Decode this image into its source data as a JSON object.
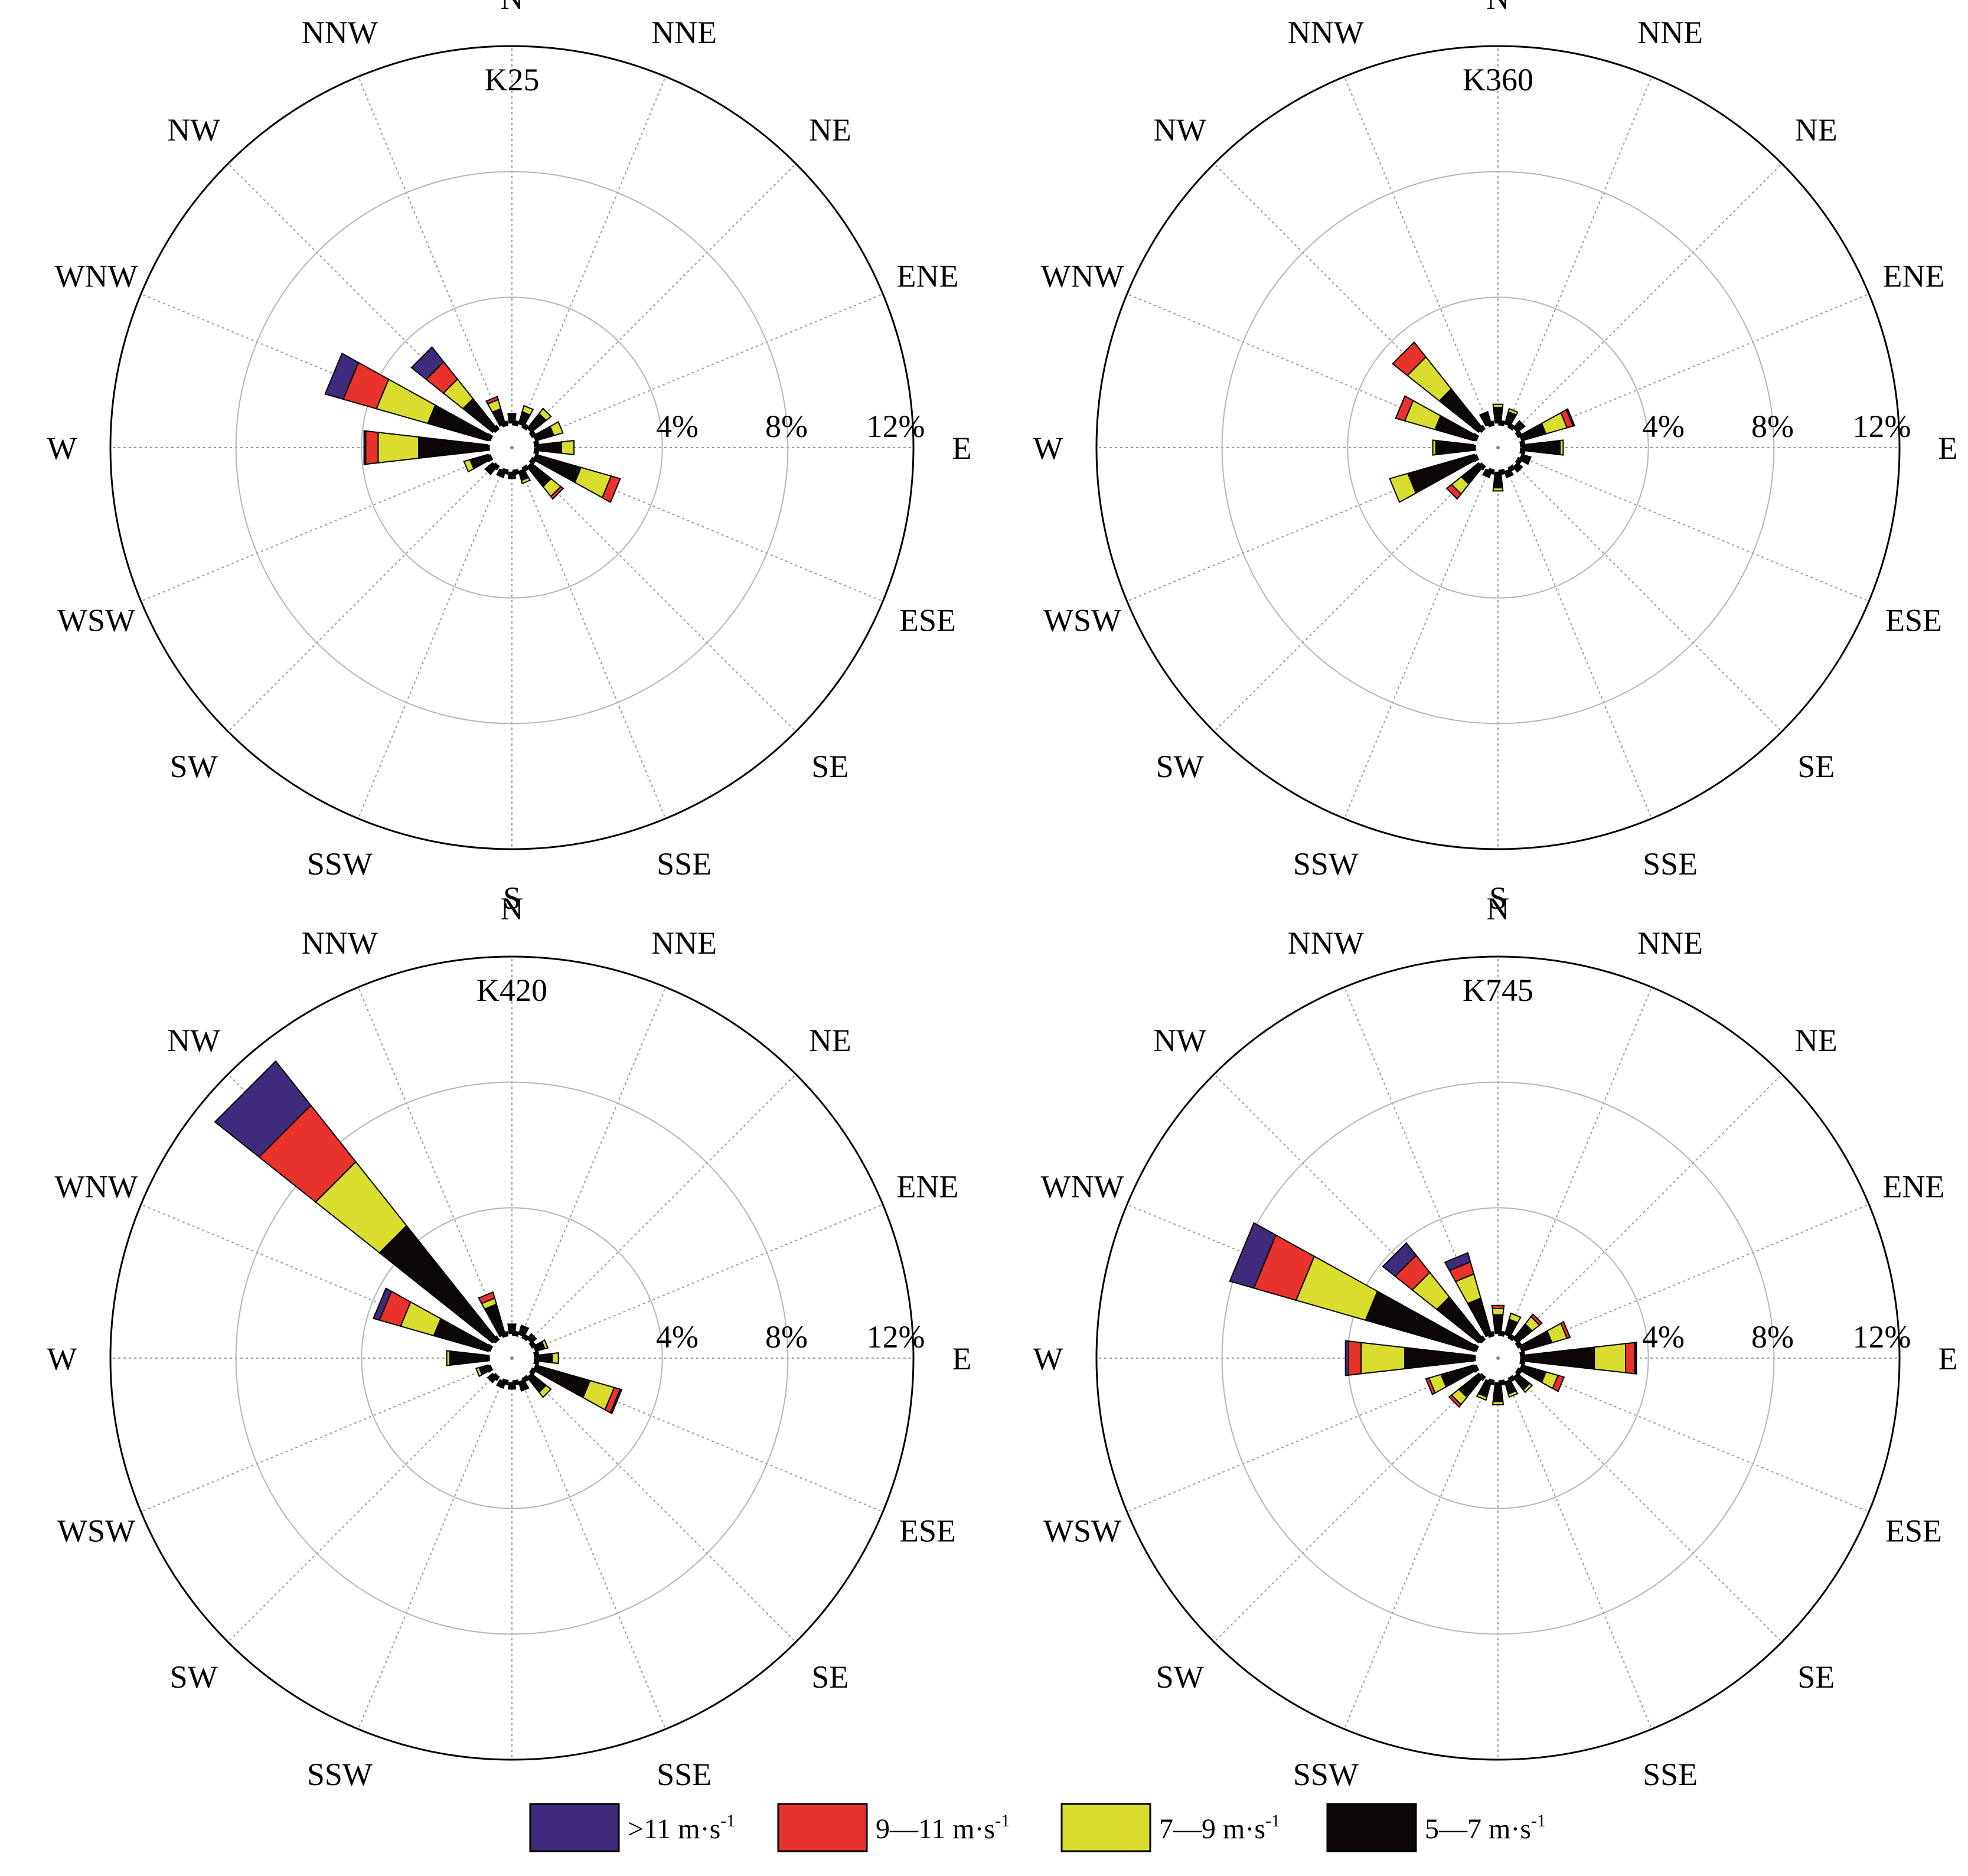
{
  "directions": [
    "N",
    "NNE",
    "NE",
    "ENE",
    "E",
    "ESE",
    "SE",
    "SSE",
    "S",
    "SSW",
    "SW",
    "WSW",
    "W",
    "WNW",
    "NW",
    "NNW"
  ],
  "ring_labels": [
    "4%",
    "8%",
    "12%"
  ],
  "colors": {
    ">11": "#3f2a7b",
    "9-11": "#e8322c",
    "7-9": "#d8dd2e",
    "5-7": "#0b0707"
  },
  "legend": [
    {
      "key": "5-7",
      "label": "5—7 m·s",
      "sup": "-1"
    },
    {
      "key": "7-9",
      "label": "7—9 m·s",
      "sup": "-1"
    },
    {
      "key": "9-11",
      "label": "9—11 m·s",
      "sup": "-1"
    },
    {
      "key": ">11",
      "label": ">11 m·s",
      "sup": "-1"
    }
  ],
  "chart_data": [
    {
      "type": "windrose",
      "title": "K25",
      "rmax": 12,
      "bins": [
        "5-7",
        "7-9",
        "9-11",
        ">11"
      ],
      "frequencies": {
        "N": [
          0.3,
          0.0,
          0.0,
          0.0
        ],
        "NNE": [
          0.4,
          0.2,
          0.0,
          0.0
        ],
        "NE": [
          0.6,
          0.2,
          0.0,
          0.0
        ],
        "ENE": [
          0.6,
          0.3,
          0.0,
          0.0
        ],
        "E": [
          0.8,
          0.4,
          0.0,
          0.0
        ],
        "ESE": [
          1.5,
          1.0,
          0.3,
          0.0
        ],
        "SE": [
          0.8,
          0.4,
          0.1,
          0.0
        ],
        "SSE": [
          0.3,
          0.1,
          0.0,
          0.0
        ],
        "S": [
          0.2,
          0.0,
          0.0,
          0.0
        ],
        "SSW": [
          0.2,
          0.0,
          0.0,
          0.0
        ],
        "SW": [
          0.3,
          0.0,
          0.0,
          0.0
        ],
        "WSW": [
          0.6,
          0.2,
          0.0,
          0.0
        ],
        "W": [
          2.2,
          1.3,
          0.4,
          0.05
        ],
        "WNW": [
          2.0,
          1.7,
          1.1,
          0.6
        ],
        "NW": [
          1.2,
          0.8,
          0.7,
          0.6
        ],
        "NNW": [
          0.5,
          0.3,
          0.1,
          0.0
        ]
      }
    },
    {
      "type": "windrose",
      "title": "K360",
      "rmax": 12,
      "bins": [
        "5-7",
        "7-9",
        "9-11",
        ">11"
      ],
      "frequencies": {
        "N": [
          0.5,
          0.1,
          0.0,
          0.0
        ],
        "NNE": [
          0.4,
          0.1,
          0.0,
          0.0
        ],
        "NE": [
          0.3,
          0.0,
          0.0,
          0.0
        ],
        "ENE": [
          0.8,
          0.7,
          0.2,
          0.05
        ],
        "E": [
          1.2,
          0.1,
          0.0,
          0.0
        ],
        "ESE": [
          0.3,
          0.0,
          0.0,
          0.0
        ],
        "SE": [
          0.2,
          0.0,
          0.0,
          0.0
        ],
        "SSE": [
          0.2,
          0.0,
          0.0,
          0.0
        ],
        "S": [
          0.5,
          0.1,
          0.0,
          0.0
        ],
        "SSW": [
          0.2,
          0.0,
          0.0,
          0.0
        ],
        "SW": [
          0.7,
          0.4,
          0.2,
          0.0
        ],
        "WSW": [
          2.2,
          0.6,
          0.0,
          0.0
        ],
        "W": [
          1.2,
          0.1,
          0.0,
          0.0
        ],
        "WNW": [
          1.3,
          1.0,
          0.3,
          0.0
        ],
        "NW": [
          1.6,
          1.3,
          0.6,
          0.0
        ],
        "NNW": [
          0.4,
          0.0,
          0.0,
          0.0
        ]
      }
    },
    {
      "type": "windrose",
      "title": "K420",
      "rmax": 12,
      "bins": [
        "5-7",
        "7-9",
        "9-11",
        ">11"
      ],
      "frequencies": {
        "N": [
          0.3,
          0.0,
          0.0,
          0.0
        ],
        "NNE": [
          0.3,
          0.0,
          0.0,
          0.0
        ],
        "NE": [
          0.2,
          0.0,
          0.0,
          0.0
        ],
        "ENE": [
          0.3,
          0.1,
          0.0,
          0.0
        ],
        "E": [
          0.5,
          0.2,
          0.0,
          0.0
        ],
        "ESE": [
          1.8,
          0.8,
          0.2,
          0.05
        ],
        "SE": [
          0.6,
          0.2,
          0.0,
          0.0
        ],
        "SSE": [
          0.3,
          0.0,
          0.0,
          0.0
        ],
        "S": [
          0.2,
          0.0,
          0.0,
          0.0
        ],
        "SSW": [
          0.2,
          0.0,
          0.0,
          0.0
        ],
        "SW": [
          0.2,
          0.0,
          0.0,
          0.0
        ],
        "WSW": [
          0.3,
          0.1,
          0.0,
          0.0
        ],
        "W": [
          1.2,
          0.1,
          0.0,
          0.0
        ],
        "WNW": [
          1.8,
          1.1,
          0.7,
          0.2
        ],
        "NW": [
          4.6,
          2.6,
          2.3,
          1.8
        ],
        "NNW": [
          1.0,
          0.2,
          0.2,
          0.0
        ]
      }
    },
    {
      "type": "windrose",
      "title": "K745",
      "rmax": 12,
      "bins": [
        "5-7",
        "7-9",
        "9-11",
        ">11"
      ],
      "frequencies": {
        "N": [
          0.6,
          0.2,
          0.1,
          0.0
        ],
        "NNE": [
          0.5,
          0.2,
          0.0,
          0.0
        ],
        "NE": [
          0.6,
          0.3,
          0.1,
          0.0
        ],
        "ENE": [
          1.0,
          0.5,
          0.1,
          0.0
        ],
        "E": [
          2.3,
          1.0,
          0.3,
          0.05
        ],
        "ESE": [
          0.8,
          0.4,
          0.2,
          0.0
        ],
        "SE": [
          0.5,
          0.1,
          0.0,
          0.0
        ],
        "SSE": [
          0.4,
          0.1,
          0.0,
          0.0
        ],
        "S": [
          0.6,
          0.1,
          0.0,
          0.0
        ],
        "SSW": [
          0.5,
          0.1,
          0.0,
          0.0
        ],
        "SW": [
          0.8,
          0.3,
          0.1,
          0.0
        ],
        "WSW": [
          1.1,
          0.4,
          0.1,
          0.0
        ],
        "W": [
          2.2,
          1.4,
          0.4,
          0.1
        ],
        "WNW": [
          3.6,
          2.3,
          1.4,
          0.8
        ],
        "NW": [
          1.7,
          1.0,
          0.7,
          0.5
        ],
        "NNW": [
          1.2,
          0.8,
          0.4,
          0.3
        ]
      }
    }
  ]
}
